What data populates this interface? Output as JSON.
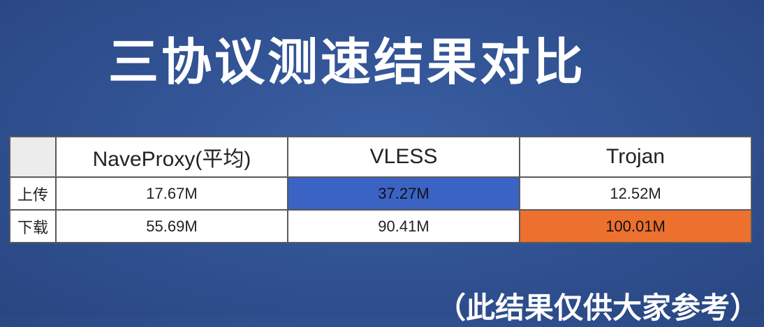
{
  "title": "三协议测速结果对比",
  "table": {
    "headers": [
      "",
      "NaveProxy(平均)",
      "VLESS",
      "Trojan"
    ],
    "rows": [
      {
        "label": "上传",
        "values": [
          "17.67M",
          "37.27M",
          "12.52M"
        ]
      },
      {
        "label": "下载",
        "values": [
          "55.69M",
          "90.41M",
          "100.01M"
        ]
      }
    ]
  },
  "note": "（此结果仅供大家参考）",
  "colors": {
    "highlight_blue": "#3a63c4",
    "highlight_orange": "#ec702e",
    "background": "#2f4f8f"
  }
}
